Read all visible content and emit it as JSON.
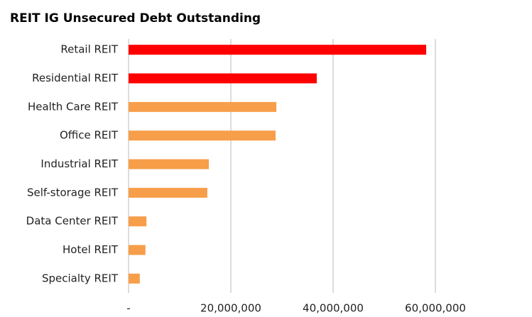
{
  "chart_data": {
    "type": "hbar",
    "title": "REIT IG Unsecured Debt Outstanding",
    "categories": [
      "Retail REIT",
      "Residential REIT",
      "Health Care REIT",
      "Office REIT",
      "Industrial REIT",
      "Self-storage REIT",
      "Data Center REIT",
      "Hotel REIT",
      "Specialty REIT"
    ],
    "values": [
      58200000,
      36800000,
      28900000,
      28750000,
      15700000,
      15400000,
      3500000,
      3300000,
      2200000
    ],
    "colors": [
      "#ff0000",
      "#ff0000",
      "#f79e4a",
      "#f79e4a",
      "#f79e4a",
      "#f79e4a",
      "#f79e4a",
      "#f79e4a",
      "#f79e4a"
    ],
    "xlim": [
      0,
      75000000
    ],
    "xticks": [
      {
        "value": 0,
        "label": "-"
      },
      {
        "value": 20000000,
        "label": "20,000,000"
      },
      {
        "value": 40000000,
        "label": "40,000,000"
      },
      {
        "value": 60000000,
        "label": "60,000,000"
      }
    ],
    "grid": true
  }
}
